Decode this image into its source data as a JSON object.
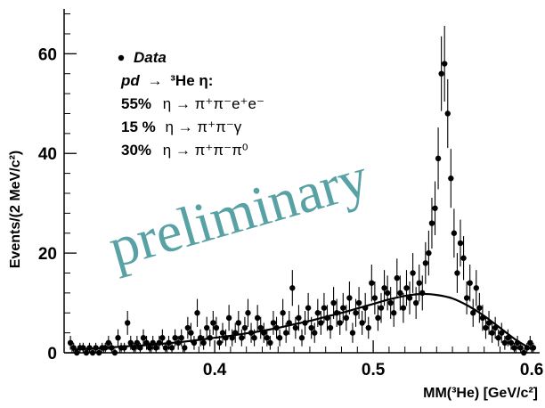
{
  "chart_data": {
    "type": "scatter",
    "title": "",
    "xlabel": "MM(³He) [GeV/c²]",
    "ylabel": "Events/(2 MeV/c²)",
    "xlim": [
      0.305,
      0.605
    ],
    "ylim": [
      0,
      69
    ],
    "x_ticks": [
      0.4,
      0.5,
      0.6
    ],
    "x_tick_labels": [
      "0.4",
      "0.5",
      "0.6"
    ],
    "y_ticks": [
      0,
      20,
      40,
      60
    ],
    "y_tick_labels": [
      "0",
      "20",
      "40",
      "60"
    ],
    "grid": false,
    "legend_position": "top-left",
    "legend": {
      "line1": "Data",
      "line2_reaction": "pd",
      "line2_rest": "³He η:",
      "line3_pct": "55%",
      "line3_decay": "η → π⁺π⁻e⁺e⁻",
      "line4_pct": "15 %",
      "line4_decay": "η → π⁺π⁻γ",
      "line5_pct": "30%",
      "line5_decay": "η → π⁺π⁻π⁰"
    },
    "watermark": "preliminary",
    "series": [
      {
        "kind": "points-with-errors",
        "x": [
          0.309,
          0.311,
          0.313,
          0.315,
          0.317,
          0.319,
          0.321,
          0.323,
          0.325,
          0.327,
          0.329,
          0.331,
          0.333,
          0.335,
          0.337,
          0.339,
          0.341,
          0.343,
          0.345,
          0.347,
          0.349,
          0.351,
          0.353,
          0.355,
          0.357,
          0.359,
          0.361,
          0.363,
          0.365,
          0.367,
          0.369,
          0.371,
          0.373,
          0.375,
          0.377,
          0.379,
          0.381,
          0.383,
          0.385,
          0.387,
          0.389,
          0.391,
          0.393,
          0.395,
          0.397,
          0.399,
          0.401,
          0.403,
          0.405,
          0.407,
          0.409,
          0.411,
          0.413,
          0.415,
          0.417,
          0.419,
          0.421,
          0.423,
          0.425,
          0.427,
          0.429,
          0.431,
          0.433,
          0.435,
          0.437,
          0.439,
          0.441,
          0.443,
          0.445,
          0.447,
          0.449,
          0.451,
          0.453,
          0.455,
          0.457,
          0.459,
          0.461,
          0.463,
          0.465,
          0.467,
          0.469,
          0.471,
          0.473,
          0.475,
          0.477,
          0.479,
          0.481,
          0.483,
          0.485,
          0.487,
          0.489,
          0.491,
          0.493,
          0.495,
          0.497,
          0.499,
          0.501,
          0.503,
          0.505,
          0.507,
          0.509,
          0.511,
          0.513,
          0.515,
          0.517,
          0.519,
          0.521,
          0.523,
          0.525,
          0.527,
          0.529,
          0.531,
          0.533,
          0.535,
          0.537,
          0.539,
          0.541,
          0.543,
          0.545,
          0.547,
          0.549,
          0.551,
          0.553,
          0.555,
          0.557,
          0.559,
          0.561,
          0.563,
          0.565,
          0.567,
          0.569,
          0.571,
          0.573,
          0.575,
          0.577,
          0.579,
          0.581,
          0.583,
          0.585,
          0.587,
          0.589,
          0.591,
          0.593,
          0.595,
          0.597,
          0.599,
          0.601
        ],
        "y": [
          2,
          1,
          0,
          1,
          1,
          0,
          1,
          0,
          1,
          0,
          1,
          1,
          2,
          1,
          0,
          3,
          1,
          1,
          6,
          2,
          1,
          2,
          1,
          3,
          2,
          1,
          2,
          1,
          2,
          3,
          1,
          2,
          1,
          3,
          2,
          3,
          1,
          5,
          4,
          2,
          8,
          3,
          2,
          5,
          3,
          6,
          5,
          2,
          4,
          3,
          7,
          3,
          4,
          6,
          3,
          5,
          8,
          4,
          3,
          7,
          5,
          4,
          3,
          2,
          6,
          5,
          3,
          8,
          4,
          6,
          13,
          5,
          7,
          3,
          6,
          9,
          5,
          4,
          8,
          6,
          9,
          7,
          5,
          10,
          8,
          6,
          9,
          7,
          11,
          4,
          8,
          10,
          6,
          9,
          5,
          14,
          11,
          7,
          9,
          13,
          12,
          10,
          8,
          15,
          12,
          9,
          13,
          11,
          16,
          10,
          14,
          12,
          18,
          20,
          26,
          29,
          39,
          56,
          58,
          48,
          35,
          24,
          16,
          22,
          19,
          11,
          14,
          8,
          13,
          9,
          7,
          5,
          6,
          4,
          5,
          3,
          4,
          2,
          3,
          2,
          1,
          2,
          1,
          0,
          1,
          2,
          1
        ],
        "yerr": [
          1.4,
          1,
          0.8,
          1,
          1,
          0.8,
          1,
          0.8,
          1,
          0.8,
          1,
          1,
          1.4,
          1,
          0.8,
          1.7,
          1,
          1,
          2.4,
          1.4,
          1,
          1.4,
          1,
          1.7,
          1.4,
          1,
          1.4,
          1,
          1.4,
          1.7,
          1,
          1.4,
          1,
          1.7,
          1.4,
          1.7,
          1,
          2.2,
          2,
          1.4,
          2.8,
          1.7,
          1.4,
          2.2,
          1.7,
          2.4,
          2.2,
          1.4,
          2,
          1.7,
          2.6,
          1.7,
          2,
          2.4,
          1.7,
          2.2,
          2.8,
          2,
          1.7,
          2.6,
          2.2,
          2,
          1.7,
          1.4,
          2.4,
          2.2,
          1.7,
          2.8,
          2,
          2.4,
          3.6,
          2.2,
          2.6,
          1.7,
          2.4,
          3,
          2.2,
          2,
          2.8,
          2.4,
          3,
          2.6,
          2.2,
          3.2,
          2.8,
          2.4,
          3,
          2.6,
          3.3,
          2,
          2.8,
          3.2,
          2.4,
          3,
          2.2,
          3.7,
          3.3,
          2.6,
          3,
          3.6,
          3.5,
          3.2,
          2.8,
          3.9,
          3.5,
          3,
          3.6,
          3.3,
          4,
          3.2,
          3.7,
          3.5,
          4.2,
          4.5,
          5.1,
          5.4,
          6.2,
          7.5,
          7.6,
          6.9,
          5.9,
          4.9,
          4,
          4.7,
          4.4,
          3.3,
          3.7,
          2.8,
          3.6,
          3,
          2.6,
          2.2,
          2.4,
          2,
          2.2,
          1.7,
          2,
          1.4,
          1.7,
          1.4,
          1,
          1.4,
          1,
          0.8,
          1,
          1.4,
          1
        ]
      },
      {
        "kind": "fit-curve",
        "x": [
          0.31,
          0.32,
          0.33,
          0.34,
          0.35,
          0.36,
          0.37,
          0.38,
          0.39,
          0.4,
          0.41,
          0.42,
          0.43,
          0.44,
          0.45,
          0.46,
          0.47,
          0.48,
          0.49,
          0.5,
          0.51,
          0.52,
          0.53,
          0.54,
          0.55,
          0.56,
          0.57,
          0.58,
          0.59,
          0.6
        ],
        "y": [
          0.6,
          0.8,
          1.0,
          1.2,
          1.4,
          1.6,
          1.9,
          2.2,
          2.6,
          3.0,
          3.4,
          3.9,
          4.4,
          5.0,
          5.7,
          6.4,
          7.2,
          8.0,
          8.9,
          9.8,
          10.7,
          11.4,
          11.8,
          11.6,
          10.9,
          9.4,
          7.4,
          5.0,
          2.6,
          0.7
        ]
      }
    ]
  }
}
